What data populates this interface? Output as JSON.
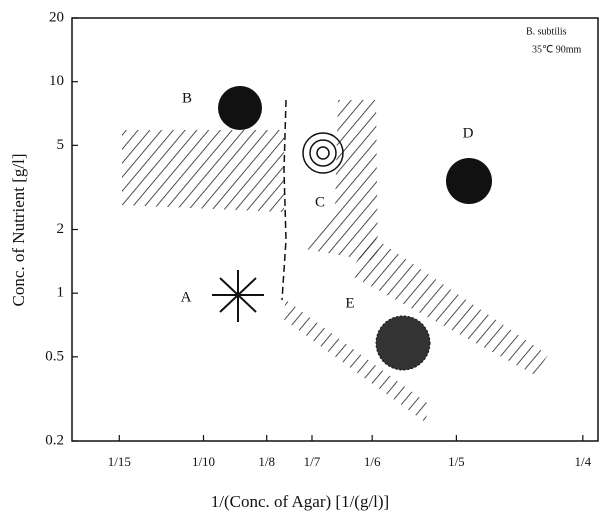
{
  "chart_data": {
    "type": "region",
    "x_label": "1/(Conc. of Agar) [1/(g/l)]",
    "y_label": "Conc. of Nutrient [g/l]",
    "annotations": [
      "B. subtilis",
      "35℃ 90mm"
    ],
    "regions": [
      "A",
      "B",
      "C",
      "D",
      "E"
    ],
    "xlim": [
      0.048,
      0.256
    ],
    "xticks": [
      {
        "value": 0.0667,
        "label": "1/15"
      },
      {
        "value": 0.1,
        "label": "1/10"
      },
      {
        "value": 0.125,
        "label": "1/8"
      },
      {
        "value": 0.1429,
        "label": "1/7"
      },
      {
        "value": 0.1667,
        "label": "1/6"
      },
      {
        "value": 0.2,
        "label": "1/5"
      },
      {
        "value": 0.25,
        "label": "1/4"
      }
    ],
    "ylim": [
      0.2,
      20
    ],
    "yticks": [
      0.2,
      0.5,
      1,
      2,
      5,
      10,
      20
    ],
    "y_log": true
  }
}
